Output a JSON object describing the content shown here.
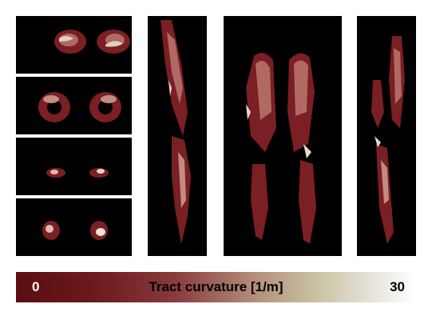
{
  "colorbar": {
    "min_label": "0",
    "title": "Tract curvature [1/m]",
    "max_label": "30",
    "colors": [
      "#5a0d10",
      "#8a3b3c",
      "#c8c2a0",
      "#ffffff"
    ]
  }
}
